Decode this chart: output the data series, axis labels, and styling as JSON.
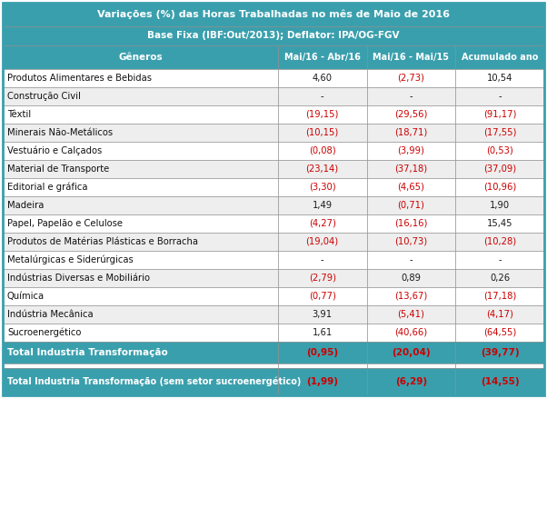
{
  "title1": "Variações (%) das Horas Trabalhadas no mês de Maio de 2016",
  "title2": "Base Fixa (IBF:Out/2013); Deflator: IPA/OG-FGV",
  "col_headers": [
    "Gêneros",
    "Mai/16 - Abr/16",
    "Mai/16 - Mai/15",
    "Acumulado ano"
  ],
  "rows": [
    [
      "Produtos Alimentares e Bebidas",
      "4,60",
      "(2,73)",
      "10,54"
    ],
    [
      "Construção Civil",
      "-",
      "-",
      "-"
    ],
    [
      "Têxtil",
      "(19,15)",
      "(29,56)",
      "(91,17)"
    ],
    [
      "Minerais Não-Metálicos",
      "(10,15)",
      "(18,71)",
      "(17,55)"
    ],
    [
      "Vestuário e Calçados",
      "(0,08)",
      "(3,99)",
      "(0,53)"
    ],
    [
      "Material de Transporte",
      "(23,14)",
      "(37,18)",
      "(37,09)"
    ],
    [
      "Editorial e gráfica",
      "(3,30)",
      "(4,65)",
      "(10,96)"
    ],
    [
      "Madeira",
      "1,49",
      "(0,71)",
      "1,90"
    ],
    [
      "Papel, Papelão e Celulose",
      "(4,27)",
      "(16,16)",
      "15,45"
    ],
    [
      "Produtos de Matérias Plásticas e Borracha",
      "(19,04)",
      "(10,73)",
      "(10,28)"
    ],
    [
      "Metalúrgicas e Siderúrgicas",
      "-",
      "-",
      "-"
    ],
    [
      "Indústrias Diversas e Mobiliário",
      "(2,79)",
      "0,89",
      "0,26"
    ],
    [
      "Química",
      "(0,77)",
      "(13,67)",
      "(17,18)"
    ],
    [
      "Indústria Mecânica",
      "3,91",
      "(5,41)",
      "(4,17)"
    ],
    [
      "Sucroenergético",
      "1,61",
      "(40,66)",
      "(64,55)"
    ]
  ],
  "total_row": [
    "Total Industria Transformação",
    "(0,95)",
    "(20,04)",
    "(39,77)"
  ],
  "total_row2": [
    "Total Industria Transformação (sem setor sucroenergético)",
    "(1,99)",
    "(6,29)",
    "(14,55)"
  ],
  "header_bg": "#3a9fad",
  "header_text": "#ffffff",
  "subheader_bg": "#3a9fad",
  "subheader_text": "#ffffff",
  "col_header_bg": "#3a9fad",
  "col_header_text": "#ffffff",
  "total_bg": "#3a9fad",
  "total_text": "#ffffff",
  "odd_row_bg": "#ffffff",
  "even_row_bg": "#eeeeee",
  "negative_color": "#cc0000",
  "positive_color": "#1a1a1a",
  "border_color": "#888888",
  "outer_border_color": "#3a9fad",
  "fig_width": 6.02,
  "fig_height": 5.7,
  "dpi": 100
}
